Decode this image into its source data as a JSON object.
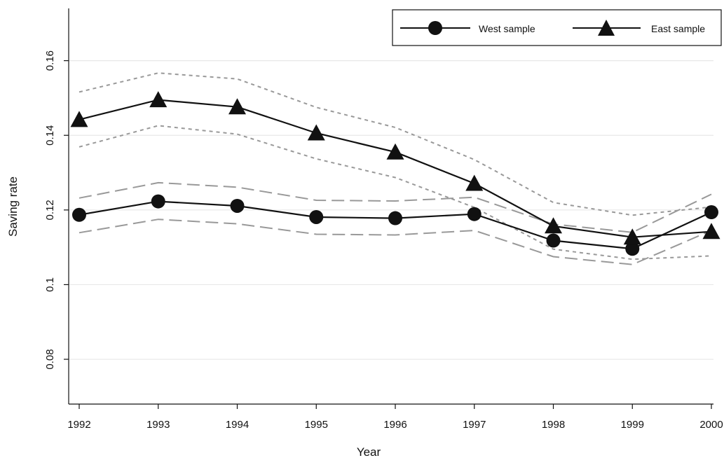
{
  "chart_data": {
    "type": "line",
    "xlabel": "Year",
    "ylabel": "Saving rate",
    "x": [
      1992,
      1993,
      1994,
      1995,
      1996,
      1997,
      1998,
      1999,
      2000
    ],
    "xlim": [
      1992,
      2000
    ],
    "ylim": [
      0.068,
      0.174
    ],
    "yticks": [
      "0.08",
      "0.1",
      "0.12",
      "0.14",
      "0.16"
    ],
    "xticks": [
      "1992",
      "1993",
      "1994",
      "1995",
      "1996",
      "1997",
      "1998",
      "1999",
      "2000"
    ],
    "grid": "horizontal",
    "legend_position": "top-right",
    "series": [
      {
        "name": "West sample",
        "marker": "circle",
        "color": "#111111",
        "values": [
          0.1187,
          0.1223,
          0.1211,
          0.1181,
          0.1178,
          0.1189,
          0.1118,
          0.1096,
          0.1194
        ],
        "band_style": "long-dash",
        "band_color": "#999999",
        "upper": [
          0.1232,
          0.1273,
          0.1261,
          0.1226,
          0.1224,
          0.1234,
          0.1162,
          0.114,
          0.1242
        ],
        "lower": [
          0.1139,
          0.1175,
          0.1163,
          0.1135,
          0.1133,
          0.1145,
          0.1075,
          0.1054,
          0.1145
        ]
      },
      {
        "name": "East sample",
        "marker": "triangle",
        "color": "#111111",
        "values": [
          0.1442,
          0.1495,
          0.1476,
          0.1406,
          0.1355,
          0.1271,
          0.1157,
          0.1127,
          0.1142
        ],
        "band_style": "short-dash",
        "band_color": "#999999",
        "upper": [
          0.1516,
          0.1567,
          0.1551,
          0.1475,
          0.1421,
          0.1335,
          0.122,
          0.1186,
          0.1208
        ],
        "lower": [
          0.1369,
          0.1426,
          0.1403,
          0.1337,
          0.1287,
          0.1207,
          0.1095,
          0.1068,
          0.1077
        ]
      }
    ]
  }
}
